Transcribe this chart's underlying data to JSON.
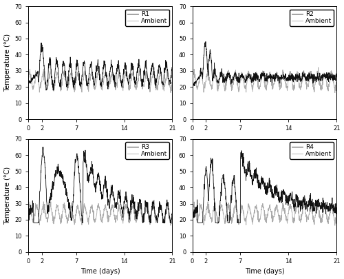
{
  "n_points": 800,
  "ylim": [
    0,
    70
  ],
  "xlim": [
    0,
    21
  ],
  "xticks": [
    0,
    2,
    7,
    14,
    21
  ],
  "yticks": [
    0,
    10,
    20,
    30,
    40,
    50,
    60,
    70
  ],
  "xlabel": "Time (days)",
  "ylabel": "Temperature (°C)",
  "reactor_color": "#111111",
  "ambient_color": "#aaaaaa",
  "reactor_lw": 0.6,
  "ambient_lw": 0.6,
  "titles": [
    "R1",
    "R2",
    "R3",
    "R4"
  ],
  "fig_width": 5.0,
  "fig_height": 4.05,
  "tick_labelsize": 6,
  "label_fontsize": 7,
  "legend_fontsize": 6.5
}
